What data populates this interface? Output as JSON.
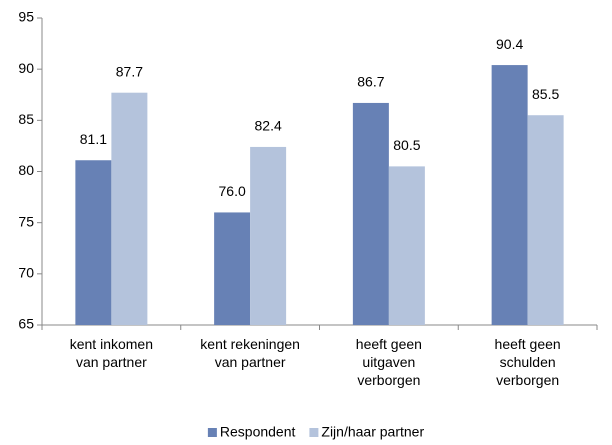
{
  "chart_data": {
    "type": "bar",
    "categories": [
      "kent inkomen\nvan partner",
      "kent rekeningen\nvan partner",
      "heeft geen\nuitgaven\nverborgen",
      "heeft geen\nschulden\nverborgen"
    ],
    "series": [
      {
        "name": "Respondent",
        "color": "#6781b5",
        "values": [
          81.1,
          76.0,
          86.7,
          90.4
        ],
        "value_labels": [
          "81.1",
          "76.0",
          "86.7",
          "90.4"
        ]
      },
      {
        "name": "Zijn/haar partner",
        "color": "#b4c3dc",
        "values": [
          87.7,
          82.4,
          80.5,
          85.5
        ],
        "value_labels": [
          "87.7",
          "82.4",
          "80.5",
          "85.5"
        ]
      }
    ],
    "ylim": [
      65,
      95
    ],
    "yticks": [
      65,
      70,
      75,
      80,
      85,
      90,
      95
    ],
    "grid": false,
    "legend": "bottom"
  }
}
